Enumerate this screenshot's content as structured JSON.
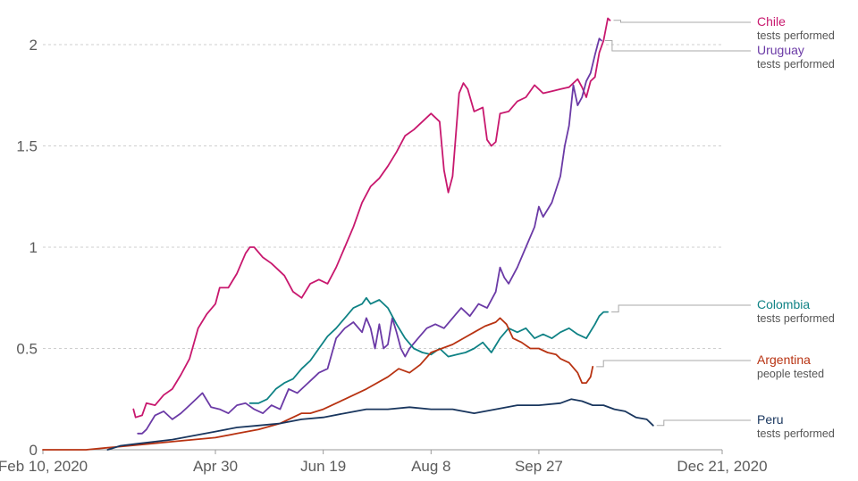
{
  "chart_data": {
    "type": "line",
    "x_ticks": [
      "Feb 10, 2020",
      "Apr 30",
      "Jun 19",
      "Aug 8",
      "Sep 27",
      "Dec 21, 2020"
    ],
    "x_tick_days": [
      0,
      80,
      130,
      180,
      230,
      315
    ],
    "y_ticks": [
      "0",
      "0.5",
      "1",
      "1.5",
      "2"
    ],
    "y_tick_values": [
      0,
      0.5,
      1,
      1.5,
      2
    ],
    "xlim": [
      0,
      315
    ],
    "ylim": [
      0,
      2.15
    ],
    "grid": true,
    "legend": "right",
    "series": [
      {
        "name": "Chile",
        "metric": "tests performed",
        "color": "#c8186e",
        "points": [
          [
            42,
            0.2
          ],
          [
            43,
            0.16
          ],
          [
            46,
            0.17
          ],
          [
            48,
            0.23
          ],
          [
            52,
            0.22
          ],
          [
            56,
            0.27
          ],
          [
            60,
            0.3
          ],
          [
            64,
            0.37
          ],
          [
            68,
            0.45
          ],
          [
            72,
            0.6
          ],
          [
            76,
            0.67
          ],
          [
            80,
            0.72
          ],
          [
            82,
            0.8
          ],
          [
            86,
            0.8
          ],
          [
            90,
            0.87
          ],
          [
            94,
            0.97
          ],
          [
            96,
            1.0
          ],
          [
            98,
            1.0
          ],
          [
            102,
            0.95
          ],
          [
            106,
            0.92
          ],
          [
            112,
            0.86
          ],
          [
            116,
            0.78
          ],
          [
            120,
            0.75
          ],
          [
            124,
            0.82
          ],
          [
            128,
            0.84
          ],
          [
            132,
            0.82
          ],
          [
            136,
            0.9
          ],
          [
            140,
            1.0
          ],
          [
            144,
            1.1
          ],
          [
            148,
            1.22
          ],
          [
            152,
            1.3
          ],
          [
            156,
            1.34
          ],
          [
            160,
            1.4
          ],
          [
            164,
            1.47
          ],
          [
            168,
            1.55
          ],
          [
            172,
            1.58
          ],
          [
            176,
            1.62
          ],
          [
            180,
            1.66
          ],
          [
            184,
            1.62
          ],
          [
            186,
            1.38
          ],
          [
            188,
            1.27
          ],
          [
            190,
            1.35
          ],
          [
            193,
            1.76
          ],
          [
            195,
            1.81
          ],
          [
            197,
            1.78
          ],
          [
            200,
            1.67
          ],
          [
            204,
            1.69
          ],
          [
            206,
            1.53
          ],
          [
            208,
            1.5
          ],
          [
            210,
            1.52
          ],
          [
            212,
            1.66
          ],
          [
            216,
            1.67
          ],
          [
            220,
            1.72
          ],
          [
            224,
            1.74
          ],
          [
            228,
            1.8
          ],
          [
            232,
            1.76
          ],
          [
            236,
            1.77
          ],
          [
            240,
            1.78
          ],
          [
            244,
            1.79
          ],
          [
            248,
            1.83
          ],
          [
            250,
            1.79
          ],
          [
            252,
            1.74
          ],
          [
            254,
            1.82
          ],
          [
            256,
            1.84
          ],
          [
            258,
            1.96
          ],
          [
            260,
            2.02
          ],
          [
            262,
            2.13
          ],
          [
            263,
            2.12
          ]
        ]
      },
      {
        "name": "Uruguay",
        "metric": "tests performed",
        "color": "#6b3aa6",
        "points": [
          [
            44,
            0.08
          ],
          [
            46,
            0.08
          ],
          [
            48,
            0.1
          ],
          [
            52,
            0.17
          ],
          [
            56,
            0.19
          ],
          [
            60,
            0.15
          ],
          [
            64,
            0.18
          ],
          [
            68,
            0.22
          ],
          [
            72,
            0.26
          ],
          [
            74,
            0.28
          ],
          [
            78,
            0.21
          ],
          [
            82,
            0.2
          ],
          [
            86,
            0.18
          ],
          [
            90,
            0.22
          ],
          [
            94,
            0.23
          ],
          [
            98,
            0.2
          ],
          [
            102,
            0.18
          ],
          [
            106,
            0.22
          ],
          [
            110,
            0.2
          ],
          [
            114,
            0.3
          ],
          [
            118,
            0.28
          ],
          [
            122,
            0.32
          ],
          [
            126,
            0.36
          ],
          [
            128,
            0.38
          ],
          [
            132,
            0.4
          ],
          [
            136,
            0.55
          ],
          [
            140,
            0.6
          ],
          [
            144,
            0.63
          ],
          [
            148,
            0.58
          ],
          [
            150,
            0.65
          ],
          [
            152,
            0.6
          ],
          [
            154,
            0.5
          ],
          [
            156,
            0.62
          ],
          [
            158,
            0.5
          ],
          [
            160,
            0.52
          ],
          [
            162,
            0.65
          ],
          [
            164,
            0.58
          ],
          [
            166,
            0.5
          ],
          [
            168,
            0.46
          ],
          [
            170,
            0.5
          ],
          [
            174,
            0.55
          ],
          [
            178,
            0.6
          ],
          [
            182,
            0.62
          ],
          [
            186,
            0.6
          ],
          [
            190,
            0.65
          ],
          [
            194,
            0.7
          ],
          [
            198,
            0.66
          ],
          [
            202,
            0.72
          ],
          [
            206,
            0.7
          ],
          [
            210,
            0.78
          ],
          [
            212,
            0.9
          ],
          [
            214,
            0.85
          ],
          [
            216,
            0.82
          ],
          [
            220,
            0.9
          ],
          [
            224,
            1.0
          ],
          [
            228,
            1.1
          ],
          [
            230,
            1.2
          ],
          [
            232,
            1.15
          ],
          [
            236,
            1.22
          ],
          [
            240,
            1.35
          ],
          [
            242,
            1.5
          ],
          [
            244,
            1.6
          ],
          [
            246,
            1.8
          ],
          [
            248,
            1.7
          ],
          [
            250,
            1.74
          ],
          [
            252,
            1.82
          ],
          [
            254,
            1.86
          ],
          [
            256,
            1.95
          ],
          [
            258,
            2.03
          ],
          [
            259,
            2.02
          ]
        ]
      },
      {
        "name": "Colombia",
        "metric": "tests performed",
        "color": "#0f8285",
        "points": [
          [
            96,
            0.23
          ],
          [
            100,
            0.23
          ],
          [
            104,
            0.25
          ],
          [
            108,
            0.3
          ],
          [
            112,
            0.33
          ],
          [
            116,
            0.35
          ],
          [
            120,
            0.4
          ],
          [
            124,
            0.44
          ],
          [
            128,
            0.5
          ],
          [
            132,
            0.56
          ],
          [
            136,
            0.6
          ],
          [
            140,
            0.65
          ],
          [
            144,
            0.7
          ],
          [
            148,
            0.72
          ],
          [
            150,
            0.75
          ],
          [
            152,
            0.72
          ],
          [
            156,
            0.74
          ],
          [
            160,
            0.7
          ],
          [
            164,
            0.62
          ],
          [
            168,
            0.55
          ],
          [
            172,
            0.5
          ],
          [
            176,
            0.48
          ],
          [
            180,
            0.47
          ],
          [
            184,
            0.5
          ],
          [
            188,
            0.46
          ],
          [
            192,
            0.47
          ],
          [
            196,
            0.48
          ],
          [
            200,
            0.5
          ],
          [
            204,
            0.53
          ],
          [
            208,
            0.48
          ],
          [
            212,
            0.55
          ],
          [
            216,
            0.6
          ],
          [
            220,
            0.58
          ],
          [
            224,
            0.6
          ],
          [
            228,
            0.55
          ],
          [
            232,
            0.57
          ],
          [
            236,
            0.55
          ],
          [
            240,
            0.58
          ],
          [
            244,
            0.6
          ],
          [
            248,
            0.57
          ],
          [
            252,
            0.55
          ],
          [
            256,
            0.62
          ],
          [
            258,
            0.66
          ],
          [
            260,
            0.68
          ],
          [
            262,
            0.68
          ]
        ]
      },
      {
        "name": "Argentina",
        "metric": "people tested",
        "color": "#b83312",
        "points": [
          [
            0,
            0
          ],
          [
            20,
            0
          ],
          [
            30,
            0.01
          ],
          [
            40,
            0.02
          ],
          [
            50,
            0.03
          ],
          [
            60,
            0.04
          ],
          [
            70,
            0.05
          ],
          [
            80,
            0.06
          ],
          [
            90,
            0.08
          ],
          [
            100,
            0.1
          ],
          [
            110,
            0.13
          ],
          [
            120,
            0.18
          ],
          [
            124,
            0.18
          ],
          [
            130,
            0.2
          ],
          [
            140,
            0.25
          ],
          [
            150,
            0.3
          ],
          [
            160,
            0.36
          ],
          [
            165,
            0.4
          ],
          [
            170,
            0.38
          ],
          [
            175,
            0.42
          ],
          [
            180,
            0.48
          ],
          [
            185,
            0.5
          ],
          [
            190,
            0.52
          ],
          [
            195,
            0.55
          ],
          [
            200,
            0.58
          ],
          [
            205,
            0.61
          ],
          [
            210,
            0.63
          ],
          [
            212,
            0.65
          ],
          [
            215,
            0.62
          ],
          [
            218,
            0.55
          ],
          [
            222,
            0.53
          ],
          [
            226,
            0.5
          ],
          [
            230,
            0.5
          ],
          [
            234,
            0.48
          ],
          [
            238,
            0.47
          ],
          [
            240,
            0.45
          ],
          [
            244,
            0.43
          ],
          [
            248,
            0.38
          ],
          [
            250,
            0.33
          ],
          [
            252,
            0.33
          ],
          [
            254,
            0.36
          ],
          [
            255,
            0.41
          ]
        ]
      },
      {
        "name": "Peru",
        "metric": "tests performed",
        "color": "#19365e",
        "points": [
          [
            30,
            0
          ],
          [
            36,
            0.02
          ],
          [
            44,
            0.03
          ],
          [
            52,
            0.04
          ],
          [
            60,
            0.05
          ],
          [
            70,
            0.07
          ],
          [
            80,
            0.09
          ],
          [
            90,
            0.11
          ],
          [
            100,
            0.12
          ],
          [
            110,
            0.13
          ],
          [
            120,
            0.15
          ],
          [
            130,
            0.16
          ],
          [
            140,
            0.18
          ],
          [
            150,
            0.2
          ],
          [
            160,
            0.2
          ],
          [
            170,
            0.21
          ],
          [
            180,
            0.2
          ],
          [
            190,
            0.2
          ],
          [
            200,
            0.18
          ],
          [
            210,
            0.2
          ],
          [
            220,
            0.22
          ],
          [
            230,
            0.22
          ],
          [
            240,
            0.23
          ],
          [
            245,
            0.25
          ],
          [
            250,
            0.24
          ],
          [
            255,
            0.22
          ],
          [
            260,
            0.22
          ],
          [
            265,
            0.2
          ],
          [
            270,
            0.19
          ],
          [
            275,
            0.16
          ],
          [
            280,
            0.15
          ],
          [
            283,
            0.12
          ]
        ]
      }
    ]
  }
}
